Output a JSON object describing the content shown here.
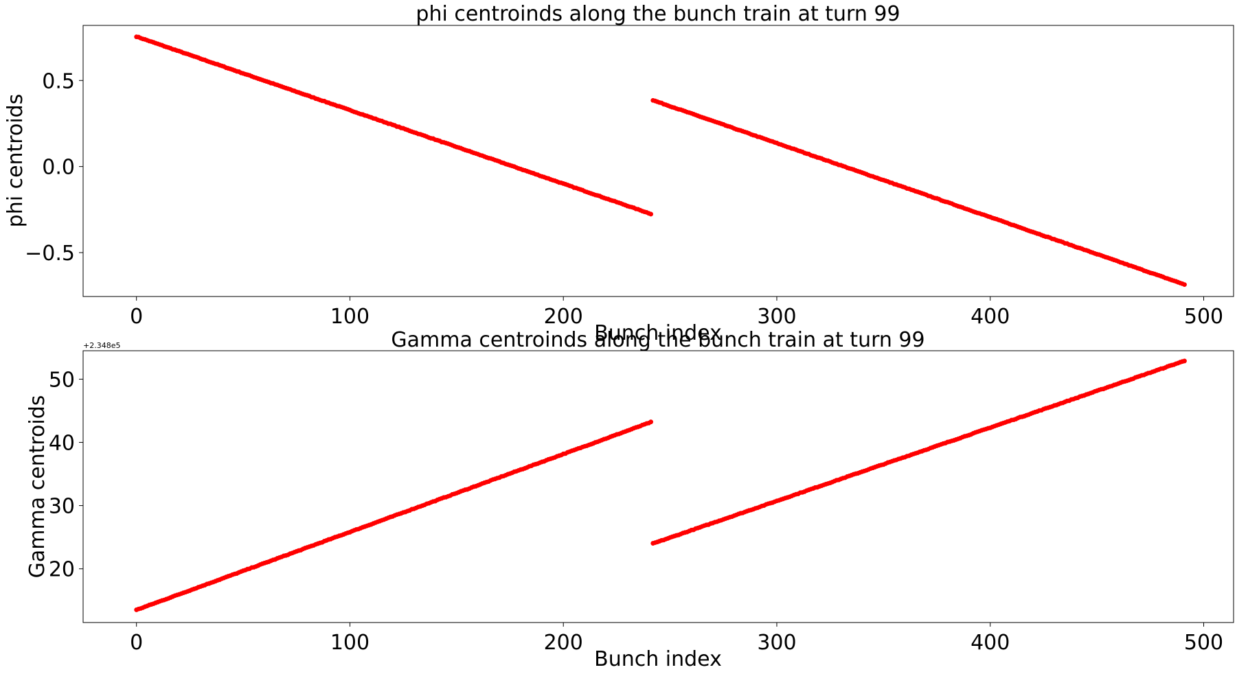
{
  "chart_data": [
    {
      "type": "scatter",
      "title": "phi centroinds along the bunch train at turn 99",
      "xlabel": "Bunch index",
      "ylabel": "phi centroids",
      "xlim": [
        -25,
        514
      ],
      "ylim": [
        -0.755,
        0.82
      ],
      "xticks": [
        0,
        100,
        200,
        300,
        400,
        500
      ],
      "xtick_labels": [
        "0",
        "100",
        "200",
        "300",
        "400",
        "500"
      ],
      "yticks": [
        0.5,
        0.0,
        -0.5
      ],
      "ytick_labels": [
        "0.5",
        "0.0",
        "−0.5"
      ],
      "grid": false,
      "color": "#ff0000",
      "series": [
        {
          "x_start": 0,
          "x_end": 241,
          "y_start": 0.755,
          "y_end": -0.275
        },
        {
          "x_start": 242,
          "x_end": 491,
          "y_start": 0.385,
          "y_end": -0.685
        }
      ]
    },
    {
      "type": "scatter",
      "title": "Gamma centroinds along the bunch train at turn 99",
      "xlabel": "Bunch index",
      "ylabel": "Gamma centroids",
      "offset_text": "+2.348e5",
      "xlim": [
        -25,
        514
      ],
      "ylim": [
        11.5,
        54.5
      ],
      "xticks": [
        0,
        100,
        200,
        300,
        400,
        500
      ],
      "xtick_labels": [
        "0",
        "100",
        "200",
        "300",
        "400",
        "500"
      ],
      "yticks": [
        50,
        40,
        30,
        20
      ],
      "ytick_labels": [
        "50",
        "40",
        "30",
        "20"
      ],
      "grid": false,
      "color": "#ff0000",
      "series": [
        {
          "x_start": 0,
          "x_end": 241,
          "y_start": 13.5,
          "y_end": 43.2
        },
        {
          "x_start": 242,
          "x_end": 491,
          "y_start": 24.0,
          "y_end": 52.9
        }
      ]
    }
  ]
}
